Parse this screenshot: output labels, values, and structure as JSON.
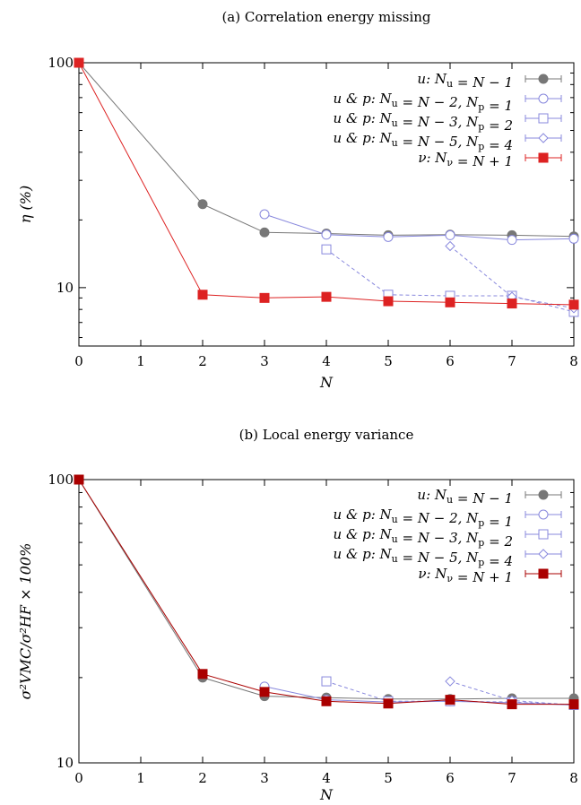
{
  "chart_data": [
    {
      "type": "line",
      "title": "(a) Correlation energy missing",
      "xlabel": "N",
      "ylabel": "η (%)",
      "xlim": [
        0,
        8
      ],
      "ylim": [
        5.5,
        100
      ],
      "yscale": "log",
      "xticks": [
        "0",
        "1",
        "2",
        "3",
        "4",
        "5",
        "6",
        "7",
        "8"
      ],
      "yticks": [
        "10",
        "100"
      ],
      "legend_position": "top-right",
      "grid": false,
      "series": [
        {
          "name": "u: Nu = N − 1",
          "color": "#777777",
          "marker": "filled-circle",
          "dash": "solid",
          "x": [
            0,
            2,
            3,
            4,
            5,
            6,
            7,
            8
          ],
          "y": [
            100,
            23.5,
            17.6,
            17.4,
            17.1,
            17.2,
            17.1,
            16.9
          ]
        },
        {
          "name": "u & p: Nu = N − 2, Np = 1",
          "color": "#8888dd",
          "marker": "open-circle",
          "dash": "solid",
          "x": [
            3,
            4,
            5,
            6,
            7,
            8
          ],
          "y": [
            21.2,
            17.2,
            16.8,
            17.1,
            16.3,
            16.5
          ]
        },
        {
          "name": "u & p: Nu = N − 3, Np = 2",
          "color": "#8888dd",
          "marker": "open-square",
          "dash": "dashed",
          "x": [
            4,
            5,
            6,
            7,
            8
          ],
          "y": [
            14.8,
            9.3,
            9.2,
            9.2,
            7.8
          ]
        },
        {
          "name": "u & p: Nu = N − 5, Np = 4",
          "color": "#8888dd",
          "marker": "open-diamond",
          "dash": "dashed",
          "x": [
            6,
            7,
            8
          ],
          "y": [
            15.3,
            9.1,
            8.1
          ]
        },
        {
          "name": "ν: Nν = N + 1",
          "color": "#dd2222",
          "marker": "filled-square",
          "dash": "solid",
          "x": [
            0,
            2,
            3,
            4,
            5,
            6,
            7,
            8
          ],
          "y": [
            100,
            9.3,
            9.0,
            9.1,
            8.7,
            8.6,
            8.5,
            8.4
          ]
        }
      ]
    },
    {
      "type": "line",
      "title": "(b) Local energy variance",
      "xlabel": "N",
      "ylabel": "σ²VMC/σ²HF × 100%",
      "xlim": [
        0,
        8
      ],
      "ylim": [
        10,
        100
      ],
      "yscale": "log",
      "xticks": [
        "0",
        "1",
        "2",
        "3",
        "4",
        "5",
        "6",
        "7",
        "8"
      ],
      "yticks": [
        "10",
        "100"
      ],
      "legend_position": "top-right",
      "grid": false,
      "series": [
        {
          "name": "u: Nu = N − 1",
          "color": "#777777",
          "marker": "filled-circle",
          "dash": "solid",
          "x": [
            0,
            2,
            3,
            4,
            5,
            6,
            7,
            8
          ],
          "y": [
            100,
            20.0,
            17.2,
            17.0,
            16.8,
            16.8,
            16.9,
            16.9
          ]
        },
        {
          "name": "u & p: Nu = N − 2, Np = 1",
          "color": "#8888dd",
          "marker": "open-circle",
          "dash": "solid",
          "x": [
            3,
            4,
            5,
            6,
            7,
            8
          ],
          "y": [
            18.6,
            16.7,
            16.4,
            16.5,
            16.3,
            16.0
          ]
        },
        {
          "name": "u & p: Nu = N − 3, Np = 2",
          "color": "#8888dd",
          "marker": "open-square",
          "dash": "dashed",
          "x": [
            4,
            5,
            6,
            7,
            8
          ],
          "y": [
            19.4,
            16.5,
            16.5,
            16.4,
            16.0
          ]
        },
        {
          "name": "u & p: Nu = N − 5, Np = 4",
          "color": "#8888dd",
          "marker": "open-diamond",
          "dash": "dashed",
          "x": [
            6,
            7,
            8
          ],
          "y": [
            19.4,
            16.6,
            16.0
          ]
        },
        {
          "name": "ν: Nν = N + 1",
          "color": "#aa0000",
          "marker": "filled-square",
          "dash": "solid",
          "x": [
            0,
            2,
            3,
            4,
            5,
            6,
            7,
            8
          ],
          "y": [
            100,
            20.6,
            17.8,
            16.5,
            16.2,
            16.7,
            16.1,
            16.1
          ]
        }
      ]
    }
  ],
  "legend_labels": [
    {
      "lead": "u",
      "mid": ": N",
      "sub1": "u",
      "rest1": " = N − 1",
      "sub2": "",
      "rest2": ""
    },
    {
      "lead": "u & p",
      "mid": ": N",
      "sub1": "u",
      "rest1": " = N − 2, N",
      "sub2": "p",
      "rest2": " = 1"
    },
    {
      "lead": "u & p",
      "mid": ": N",
      "sub1": "u",
      "rest1": " = N − 3, N",
      "sub2": "p",
      "rest2": " = 2"
    },
    {
      "lead": "u & p",
      "mid": ": N",
      "sub1": "u",
      "rest1": " = N − 5, N",
      "sub2": "p",
      "rest2": " = 4"
    },
    {
      "lead": "ν",
      "mid": ": N",
      "sub1": "ν",
      "rest1": " = N + 1",
      "sub2": "",
      "rest2": ""
    }
  ]
}
